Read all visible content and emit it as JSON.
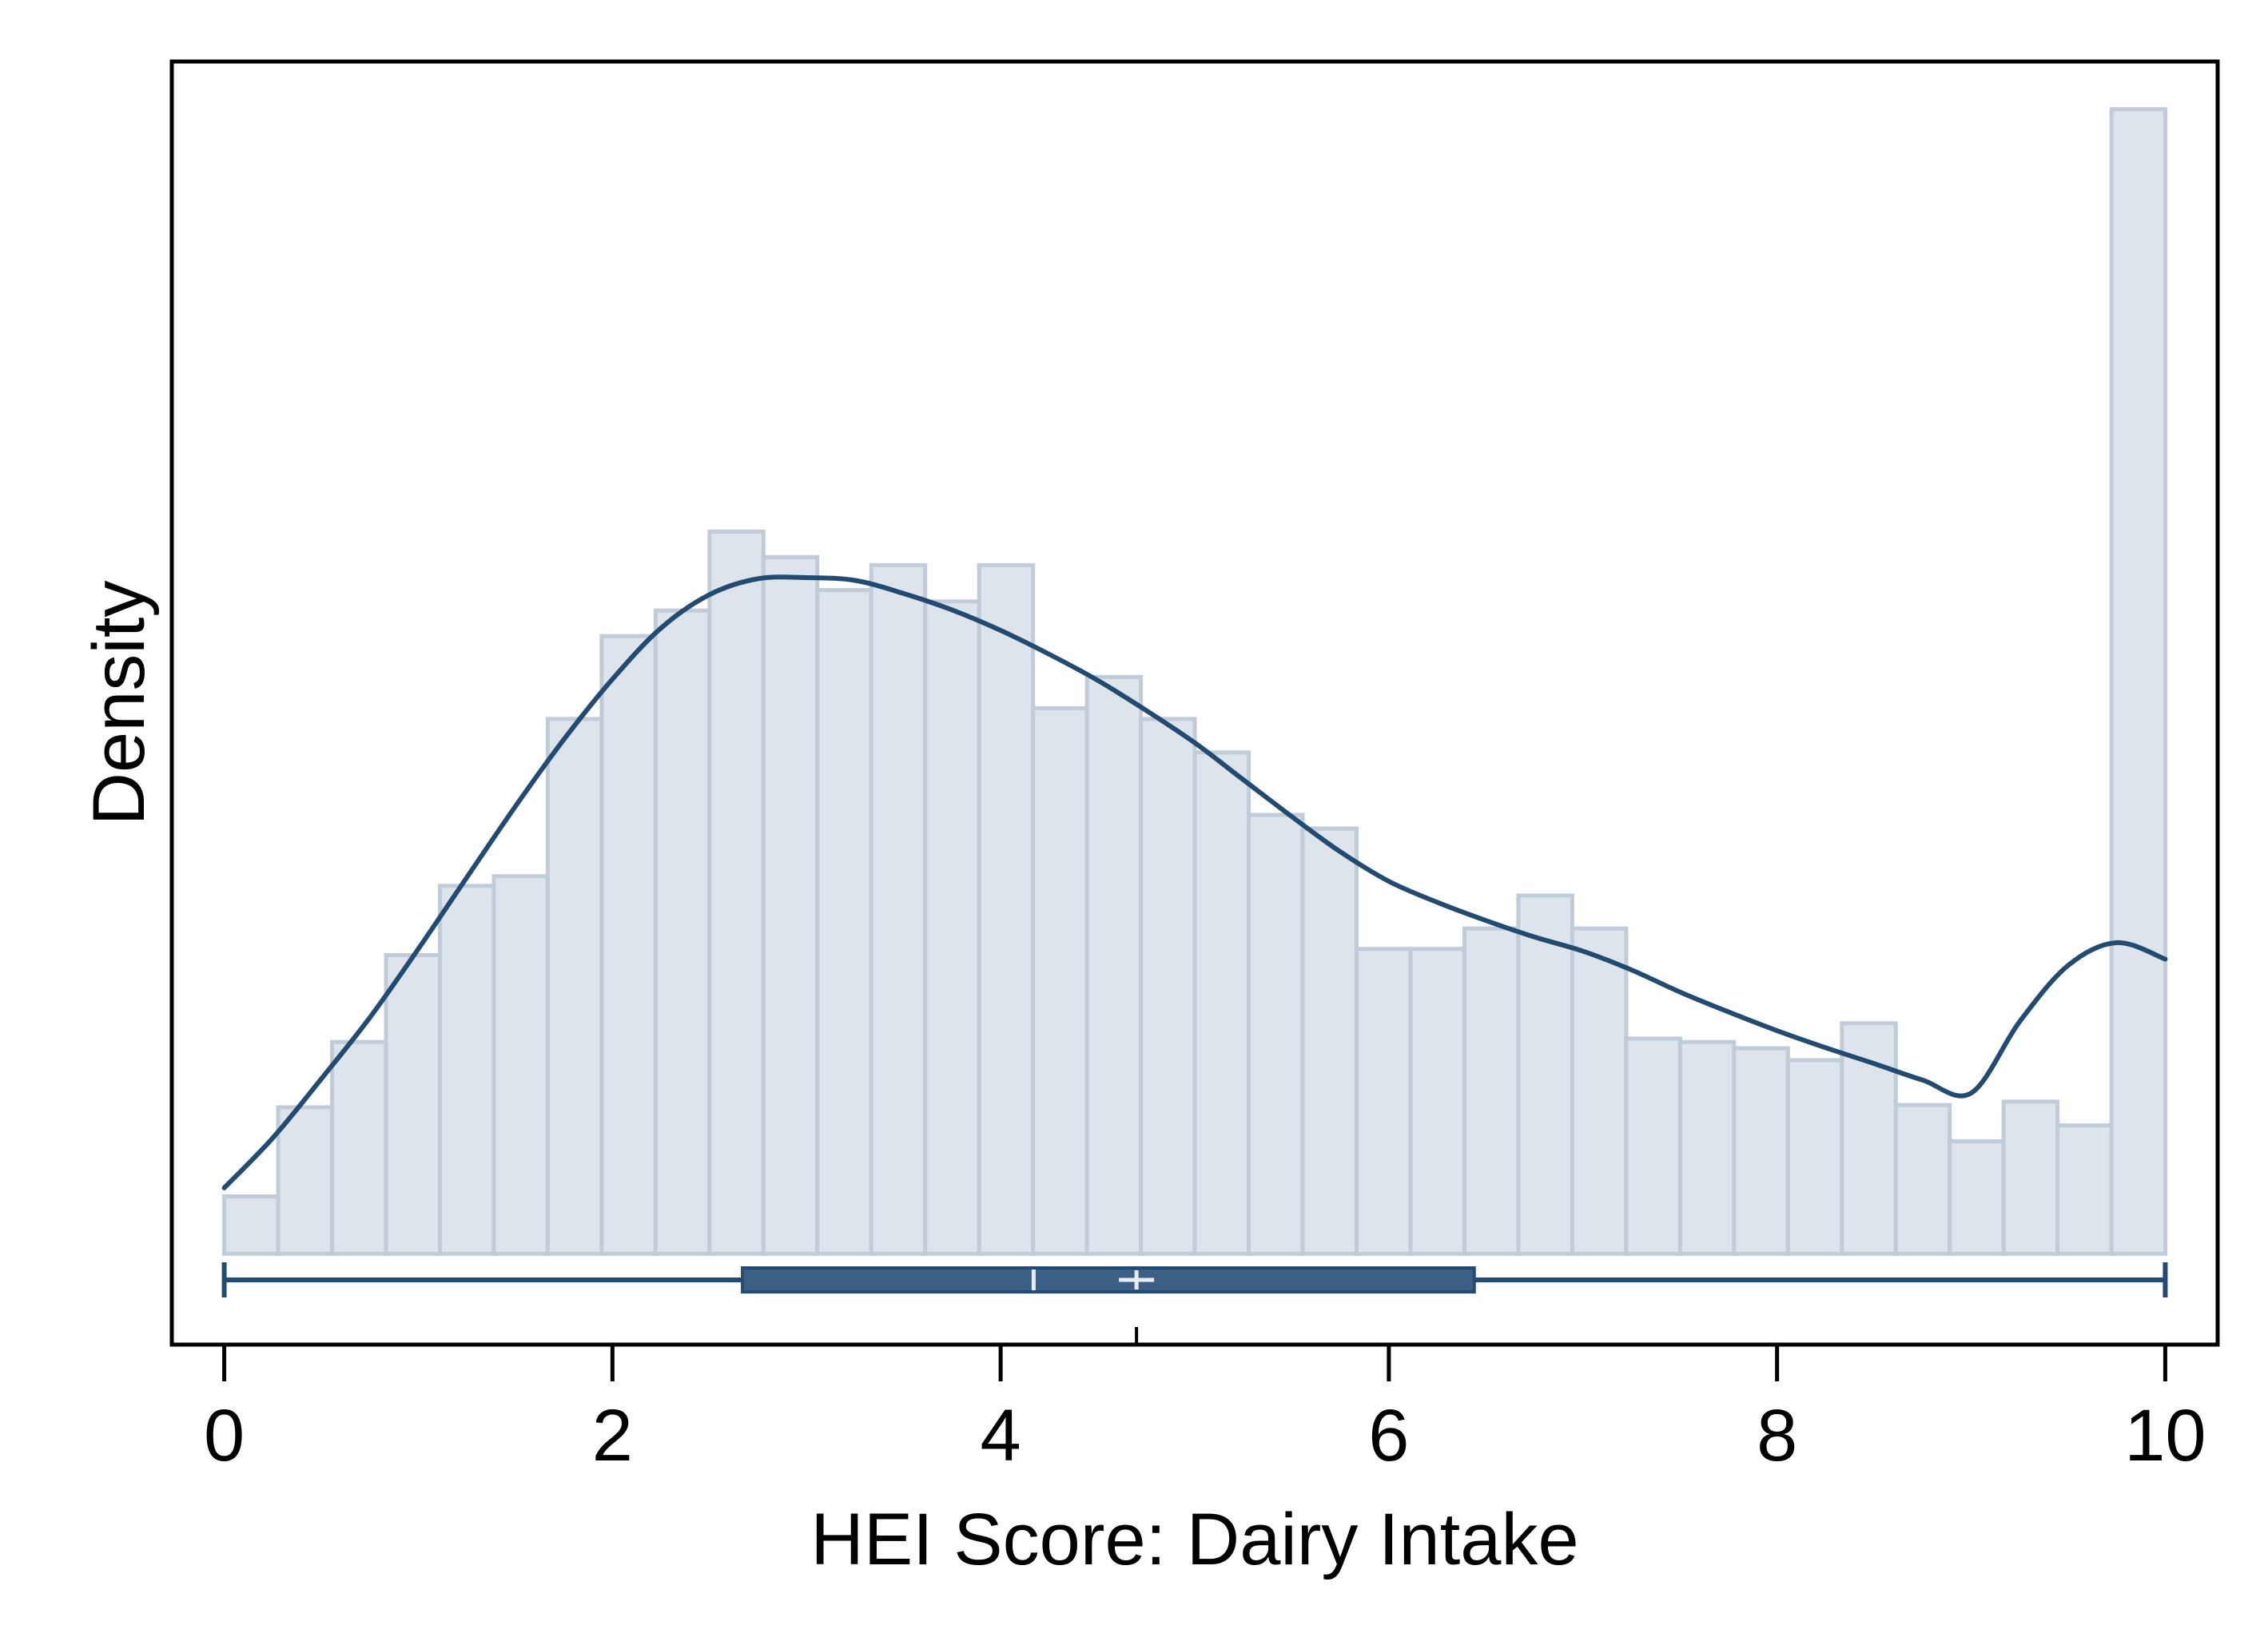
{
  "chart_data": {
    "type": "histogram",
    "title": "",
    "xlabel": "HEI Score: Dairy Intake",
    "ylabel": "Density",
    "xlim": [
      -0.27,
      10.27
    ],
    "ylim": [
      -0.016,
      0.21
    ],
    "x_ticks": [
      "0",
      "2",
      "4",
      "6",
      "8",
      "10"
    ],
    "x_tick_values": [
      0,
      2,
      4,
      6,
      8,
      10
    ],
    "y_ticks_shown": false,
    "grid": false,
    "legend": "none",
    "colors": {
      "bar_fill": "#dde4ec",
      "bar_stroke": "#c0ccd8",
      "line": "#234b72",
      "box_fill": "#3c5f86",
      "frame": "#000000"
    },
    "histogram": {
      "bin_width": 0.2778,
      "bin_start": 0,
      "densities": [
        0.0101,
        0.0258,
        0.0373,
        0.0526,
        0.0648,
        0.0665,
        0.0942,
        0.1088,
        0.1133,
        0.1272,
        0.1227,
        0.1169,
        0.1213,
        0.1149,
        0.1213,
        0.0961,
        0.1016,
        0.0942,
        0.0883,
        0.0773,
        0.0749,
        0.0537,
        0.0537,
        0.0573,
        0.0631,
        0.0573,
        0.0379,
        0.0373,
        0.0362,
        0.0341,
        0.0406,
        0.0262,
        0.0198,
        0.0268,
        0.0226,
        0.2016
      ]
    },
    "density_curve": {
      "x": [
        0,
        0.25,
        0.5,
        0.75,
        1.0,
        1.25,
        1.5,
        1.75,
        2.0,
        2.25,
        2.5,
        2.75,
        3.0,
        3.25,
        3.5,
        3.75,
        4.0,
        4.25,
        4.5,
        4.75,
        5.0,
        5.25,
        5.5,
        5.75,
        6.0,
        6.25,
        6.5,
        6.75,
        7.0,
        7.25,
        7.5,
        7.75,
        8.0,
        8.25,
        8.5,
        8.75,
        9.0,
        9.25,
        9.5,
        9.75,
        10.0
      ],
      "y": [
        0.0116,
        0.0204,
        0.0308,
        0.0416,
        0.0537,
        0.0663,
        0.0788,
        0.0906,
        0.1012,
        0.1102,
        0.1161,
        0.1189,
        0.1191,
        0.1186,
        0.1163,
        0.1134,
        0.1098,
        0.1056,
        0.101,
        0.0957,
        0.09,
        0.0835,
        0.077,
        0.0708,
        0.0656,
        0.0619,
        0.0587,
        0.0558,
        0.0533,
        0.05,
        0.0461,
        0.0426,
        0.0393,
        0.0363,
        0.0335,
        0.0306,
        0.0283,
        0.0409,
        0.0508,
        0.0548,
        0.0519
      ]
    },
    "boxplot": {
      "min": 0,
      "q1": 2.67,
      "median": 4.17,
      "mean": 4.7,
      "q3": 6.44,
      "max": 10
    }
  }
}
